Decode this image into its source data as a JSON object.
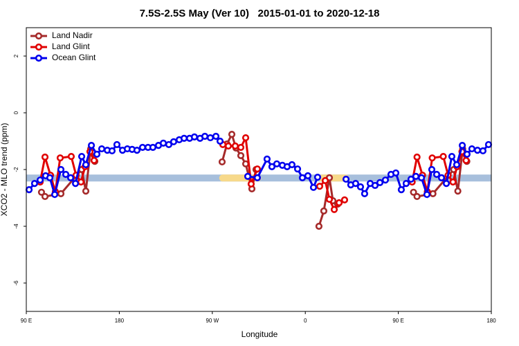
{
  "chart_data": {
    "type": "line",
    "title": "7.5S-2.5S May (Ver 10)   2015-01-01 to 2020-12-18",
    "x_label": "Longitude",
    "y_label": "XCO2 - MLO trend (ppm)",
    "xlim": [
      90,
      540
    ],
    "ylim": [
      -7,
      3
    ],
    "xticks": [
      {
        "value": 90,
        "label": "90 E"
      },
      {
        "value": 180,
        "label": "180"
      },
      {
        "value": 270,
        "label": "90 W"
      },
      {
        "value": 360,
        "label": "0"
      },
      {
        "value": 450,
        "label": "90 E"
      },
      {
        "value": 540,
        "label": "180"
      }
    ],
    "yticks": [
      2,
      0,
      -2,
      -4,
      -6
    ],
    "legend": "top-left",
    "reference_band": {
      "y": -2.3,
      "color": "#a7bfdc",
      "highlights": [
        [
          280,
          314
        ],
        [
          376,
          399
        ]
      ],
      "highlight_color": "#f7d98a"
    },
    "series": [
      {
        "name": "Land Nadir",
        "color": "#a52a2a",
        "x": [
          104.7,
          108.1,
          123.5,
          143.6,
          147.6,
          152.3,
          156.3,
          200,
          279.5,
          284.2,
          288.9,
          292.9,
          297.6,
          302.3,
          308.3,
          312.3,
          340,
          373.2,
          377.9,
          383.3,
          386.7,
          391.3,
          430,
          464.7,
          468.1,
          483.5,
          503.6,
          507.6,
          512.3,
          516.3
        ],
        "values": [
          -2.8,
          -2.95,
          -2.85,
          -2.0,
          -2.76,
          -1.27,
          -1.71,
          null,
          -1.73,
          -1.1,
          -0.76,
          -1.24,
          -1.51,
          -1.8,
          -2.68,
          -2.0,
          null,
          -4.0,
          -3.46,
          -2.29,
          -3.1,
          -3.22,
          null,
          -2.8,
          -2.95,
          -2.85,
          -2.0,
          -2.76,
          -1.27,
          -1.71
        ]
      },
      {
        "name": "Land Glint",
        "color": "#e00000",
        "x": [
          103.4,
          108.1,
          113.4,
          118.1,
          122.8,
          133.5,
          138.2,
          142.9,
          146.9,
          151.6,
          155.6,
          200,
          280.2,
          285.5,
          292.2,
          297.6,
          302.3,
          307.6,
          313.6,
          340,
          373.9,
          379.3,
          383.3,
          388,
          392.7,
          398,
          430,
          463.4,
          468.1,
          473.4,
          478.1,
          482.8,
          493.5,
          498.2,
          502.9,
          506.9,
          511.6,
          515.6
        ],
        "values": [
          -2.44,
          -1.56,
          -2.2,
          -2.78,
          -1.59,
          -1.54,
          -2.2,
          -2.44,
          -1.9,
          -1.37,
          -1.68,
          null,
          -1.12,
          -1.17,
          -1.17,
          -1.22,
          -0.88,
          -2.51,
          -1.98,
          null,
          -2.59,
          -2.39,
          -3.05,
          -3.41,
          -3.17,
          -3.07,
          null,
          -2.44,
          -1.56,
          -2.2,
          -2.78,
          -1.59,
          -1.54,
          -2.2,
          -2.44,
          -1.9,
          -1.37,
          -1.68
        ]
      },
      {
        "name": "Ocean Glint",
        "color": "#0000ee",
        "x": [
          92.7,
          98,
          103.4,
          108.7,
          112.8,
          117.5,
          123.5,
          128.2,
          132.9,
          137.6,
          143.6,
          147.6,
          153,
          158.3,
          163,
          168.4,
          173,
          177.7,
          183.1,
          187.8,
          192.4,
          197.1,
          202.5,
          207.8,
          212.5,
          217.9,
          222.6,
          227.9,
          232.6,
          238,
          242.7,
          248,
          252.7,
          258.1,
          262.8,
          268.1,
          273.5,
          277.5,
          291,
          304.3,
          313.6,
          323,
          327.7,
          332.4,
          337.8,
          342.4,
          347.1,
          352.5,
          357.2,
          362.5,
          367.9,
          371.9,
          385,
          399.4,
          404,
          408.7,
          413.4,
          417.4,
          422.8,
          427.5,
          432.2,
          437.5,
          442.9,
          447.6,
          452.9,
          457.6,
          462.3,
          467,
          472.4,
          477.7,
          482.4,
          487.1,
          491.8,
          496.5,
          501.8,
          506.5,
          511.9,
          516.5,
          521.2,
          526.6,
          531.9,
          537.3
        ],
        "values": [
          -2.71,
          -2.49,
          -2.37,
          -2.22,
          -2.29,
          -2.88,
          -2.0,
          -2.17,
          -2.29,
          -2.49,
          -1.54,
          -1.83,
          -1.15,
          -1.46,
          -1.27,
          -1.32,
          -1.34,
          -1.12,
          -1.32,
          -1.27,
          -1.29,
          -1.32,
          -1.22,
          -1.22,
          -1.22,
          -1.15,
          -1.07,
          -1.12,
          -1.02,
          -0.95,
          -0.9,
          -0.9,
          -0.85,
          -0.9,
          -0.83,
          -0.88,
          -0.83,
          -1.0,
          null,
          -2.24,
          -2.29,
          -1.63,
          -1.9,
          -1.8,
          -1.85,
          -1.9,
          -1.83,
          -1.98,
          -2.29,
          -2.22,
          -2.63,
          -2.27,
          null,
          -2.34,
          -2.54,
          -2.49,
          -2.61,
          -2.85,
          -2.49,
          -2.56,
          -2.46,
          -2.37,
          -2.17,
          -2.12,
          -2.71,
          -2.49,
          -2.34,
          -2.24,
          -2.29,
          -2.88,
          -2.0,
          -2.17,
          -2.29,
          -2.49,
          -1.54,
          -1.83,
          -1.15,
          -1.46,
          -1.27,
          -1.32,
          -1.34,
          -1.12
        ]
      }
    ]
  }
}
